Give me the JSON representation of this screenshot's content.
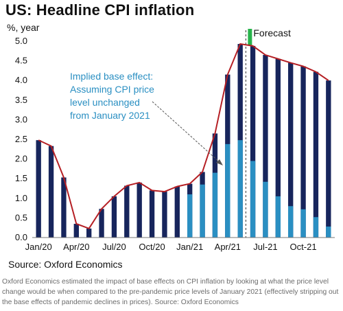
{
  "title": "US: Headline CPI inflation",
  "source": "Source: Oxford Economics",
  "caption": "Oxford Economics estimated the impact of base effects on CPI inflation by looking at what the price level change would be when compared to the pre-pandemic price levels of January 2021 (effectively stripping out the base effects of pandemic declines in prices). Source: Oxford Economics",
  "colors": {
    "total_bar": "#17255c",
    "base_effect_bar": "#2a8fc2",
    "line": "#b51f24",
    "forecast_marker": "#27b34b",
    "annotation": "#2a8fc2",
    "axis": "#777777"
  },
  "chart_data": {
    "type": "bar",
    "title": "US: Headline CPI inflation",
    "ylabel": "%, year",
    "ylim": [
      0,
      5
    ],
    "yticks": [
      0.0,
      0.5,
      1.0,
      1.5,
      2.0,
      2.5,
      3.0,
      3.5,
      4.0,
      4.5,
      5.0
    ],
    "ytick_labels": [
      "0.0",
      "0.5",
      "1.0",
      "1.5",
      "2.0",
      "2.5",
      "3.0",
      "3.5",
      "4.0",
      "4.5",
      "5.0"
    ],
    "categories": [
      "2020-01",
      "2020-02",
      "2020-03",
      "2020-04",
      "2020-05",
      "2020-06",
      "2020-07",
      "2020-08",
      "2020-09",
      "2020-10",
      "2020-11",
      "2020-12",
      "2021-01",
      "2021-02",
      "2021-03",
      "2021-04",
      "2021-05",
      "2021-06",
      "2021-07",
      "2021-08",
      "2021-09",
      "2021-10",
      "2021-11",
      "2021-12"
    ],
    "xtick_labels": [
      {
        "index": 0,
        "label": "Jan/20"
      },
      {
        "index": 3,
        "label": "Apr/20"
      },
      {
        "index": 6,
        "label": "Jul/20"
      },
      {
        "index": 9,
        "label": "Oct/20"
      },
      {
        "index": 12,
        "label": "Jan/21"
      },
      {
        "index": 15,
        "label": "Apr/21"
      },
      {
        "index": 18,
        "label": "Jul-21"
      },
      {
        "index": 21,
        "label": "Oct-21"
      }
    ],
    "series": [
      {
        "values": [
          2.48,
          2.33,
          1.53,
          0.35,
          0.23,
          0.73,
          1.05,
          1.32,
          1.4,
          1.2,
          1.17,
          1.3,
          1.37,
          1.67,
          2.65,
          4.15,
          4.93,
          4.88,
          4.65,
          4.55,
          4.45,
          4.36,
          4.22,
          4.0
        ]
      },
      {
        "values": [
          null,
          null,
          null,
          null,
          null,
          null,
          null,
          null,
          null,
          null,
          null,
          null,
          1.1,
          1.35,
          1.65,
          2.38,
          2.48,
          1.95,
          1.42,
          1.05,
          0.8,
          0.72,
          0.52,
          0.28
        ]
      }
    ],
    "line_values": [
      2.48,
      2.33,
      1.53,
      0.35,
      0.23,
      0.73,
      1.05,
      1.32,
      1.4,
      1.2,
      1.17,
      1.3,
      1.37,
      1.67,
      2.65,
      4.15,
      4.93,
      4.88,
      4.65,
      4.55,
      4.45,
      4.36,
      4.22,
      4.0
    ],
    "forecast_label": "Forecast",
    "annotation": [
      "Implied base effect:",
      "Assuming CPI price",
      "level unchanged",
      "from January 2021"
    ],
    "grid": false,
    "legend": "none"
  }
}
